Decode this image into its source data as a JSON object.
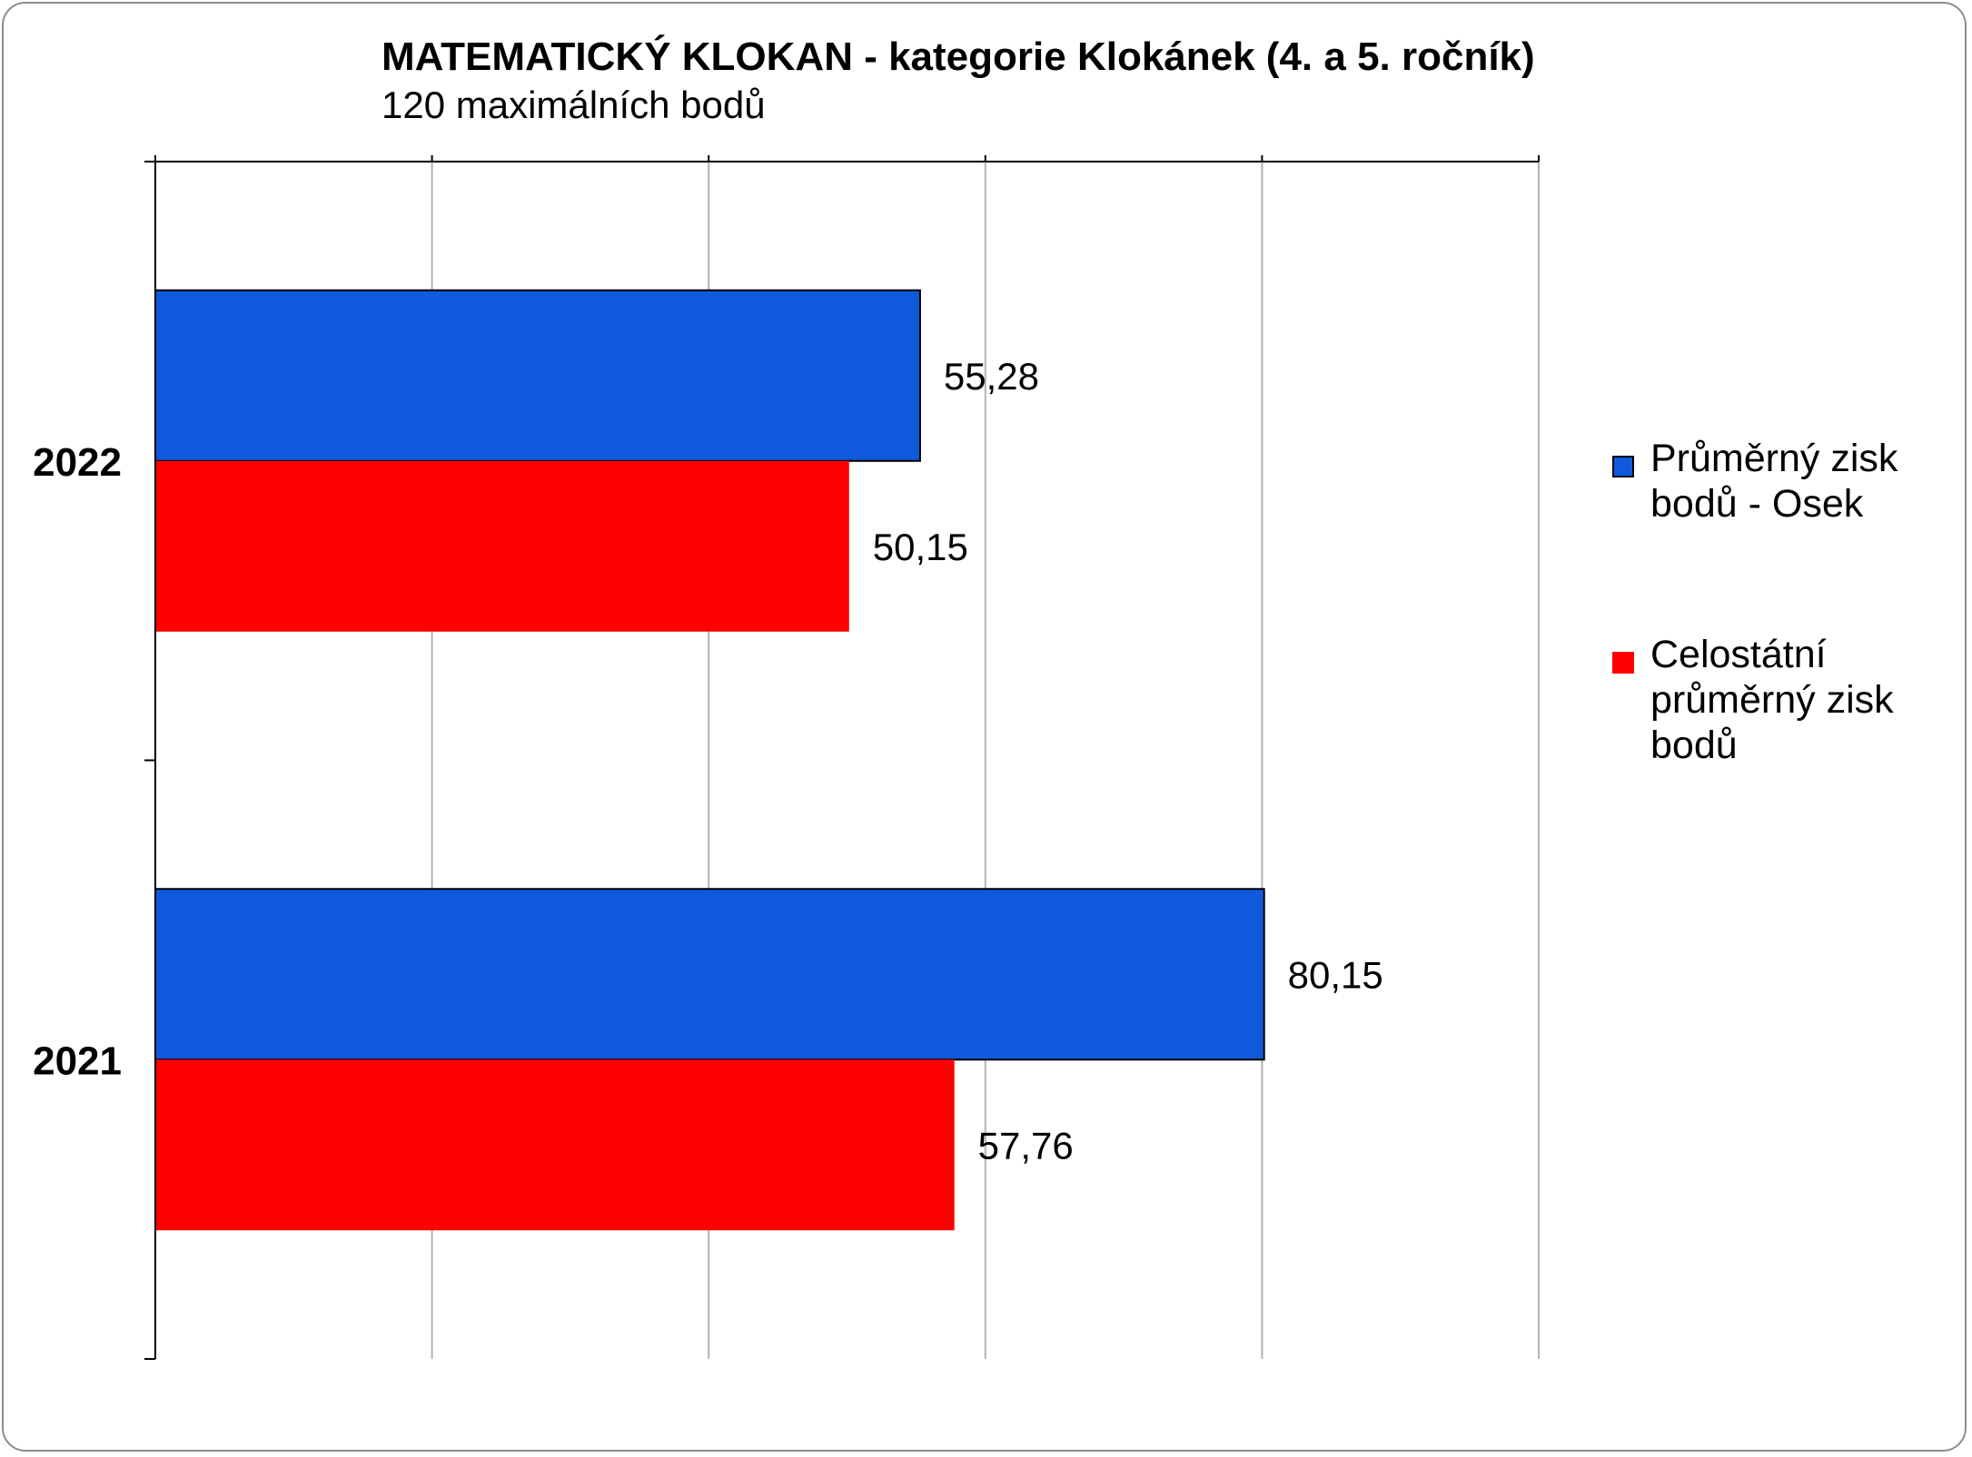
{
  "chart_data": {
    "type": "bar",
    "orientation": "horizontal",
    "title": "MATEMATICKÝ KLOKAN - kategorie Klokánek (4. a 5. ročník)",
    "subtitle": "120 maximálních bodů",
    "categories": [
      "2022",
      "2021"
    ],
    "series": [
      {
        "name": "Průměrný zisk bodů - Osek",
        "color": "#0f5adc",
        "values": [
          55.28,
          80.15
        ],
        "labels": [
          "55,28",
          "80,15"
        ]
      },
      {
        "name": "Celostátní průměrný zisk bodů",
        "color": "#ff0000",
        "values": [
          50.15,
          57.76
        ],
        "labels": [
          "50,15",
          "57,76"
        ]
      }
    ],
    "xlim": [
      0,
      100
    ],
    "x_gridlines": true,
    "x_tick_labels_visible": false,
    "legend_position": "right"
  }
}
